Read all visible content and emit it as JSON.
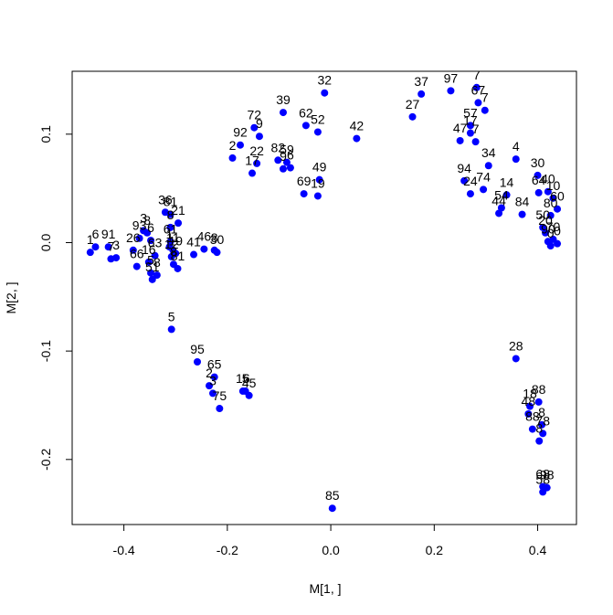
{
  "chart_data": {
    "type": "scatter",
    "title": "",
    "xlabel": "M[1, ]",
    "ylabel": "M[2, ]",
    "xlim": [
      -0.5,
      0.475
    ],
    "ylim": [
      -0.26,
      0.158
    ],
    "x_ticks": [
      -0.4,
      -0.2,
      0.0,
      0.2,
      0.4
    ],
    "x_tick_labels": [
      "-0.4",
      "-0.2",
      "0.0",
      "0.2",
      "0.4"
    ],
    "y_ticks": [
      -0.2,
      -0.1,
      0.0,
      0.1
    ],
    "y_tick_labels": [
      "-0.2",
      "-0.1",
      "0.0",
      "0.1"
    ],
    "grid": false,
    "legend": "none",
    "point_color": "#0000ff",
    "points": [
      {
        "label": "1",
        "x": -0.465,
        "y": -0.009
      },
      {
        "label": "6",
        "x": -0.455,
        "y": -0.004
      },
      {
        "label": "91",
        "x": -0.43,
        "y": -0.004
      },
      {
        "label": "7",
        "x": -0.425,
        "y": -0.015
      },
      {
        "label": "3",
        "x": -0.415,
        "y": -0.014
      },
      {
        "label": "26",
        "x": -0.382,
        "y": -0.007
      },
      {
        "label": "66",
        "x": -0.375,
        "y": -0.022
      },
      {
        "label": "93",
        "x": -0.37,
        "y": 0.004
      },
      {
        "label": "3",
        "x": -0.362,
        "y": 0.011
      },
      {
        "label": "8",
        "x": -0.355,
        "y": 0.009
      },
      {
        "label": "6",
        "x": -0.348,
        "y": 0.002
      },
      {
        "label": "16",
        "x": -0.352,
        "y": -0.018
      },
      {
        "label": "5",
        "x": -0.348,
        "y": -0.028
      },
      {
        "label": "51",
        "x": -0.345,
        "y": -0.034
      },
      {
        "label": "63",
        "x": -0.34,
        "y": -0.012
      },
      {
        "label": "8",
        "x": -0.336,
        "y": -0.03
      },
      {
        "label": "36",
        "x": -0.32,
        "y": 0.028
      },
      {
        "label": "81",
        "x": -0.31,
        "y": 0.026
      },
      {
        "label": "21",
        "x": -0.295,
        "y": 0.018
      },
      {
        "label": "8",
        "x": -0.31,
        "y": 0.014
      },
      {
        "label": "61",
        "x": -0.31,
        "y": 0.001
      },
      {
        "label": "11",
        "x": -0.305,
        "y": -0.007
      },
      {
        "label": "1",
        "x": -0.312,
        "y": -0.004
      },
      {
        "label": "12",
        "x": -0.308,
        "y": -0.013
      },
      {
        "label": "19",
        "x": -0.3,
        "y": -0.01
      },
      {
        "label": "8",
        "x": -0.304,
        "y": -0.02
      },
      {
        "label": "81",
        "x": -0.296,
        "y": -0.024
      },
      {
        "label": "41",
        "x": -0.265,
        "y": -0.011
      },
      {
        "label": "46",
        "x": -0.245,
        "y": -0.006
      },
      {
        "label": "8",
        "x": -0.225,
        "y": -0.007
      },
      {
        "label": "30",
        "x": -0.22,
        "y": -0.009
      },
      {
        "label": "5",
        "x": -0.308,
        "y": -0.08
      },
      {
        "label": "95",
        "x": -0.258,
        "y": -0.11
      },
      {
        "label": "65",
        "x": -0.225,
        "y": -0.124
      },
      {
        "label": "2",
        "x": -0.235,
        "y": -0.132
      },
      {
        "label": "3",
        "x": -0.228,
        "y": -0.139
      },
      {
        "label": "75",
        "x": -0.215,
        "y": -0.153
      },
      {
        "label": "16",
        "x": -0.17,
        "y": -0.137
      },
      {
        "label": "5",
        "x": -0.165,
        "y": -0.137
      },
      {
        "label": "45",
        "x": -0.158,
        "y": -0.141
      },
      {
        "label": "72",
        "x": -0.148,
        "y": 0.106
      },
      {
        "label": "9",
        "x": -0.138,
        "y": 0.098
      },
      {
        "label": "92",
        "x": -0.175,
        "y": 0.09
      },
      {
        "label": "2",
        "x": -0.19,
        "y": 0.078
      },
      {
        "label": "22",
        "x": -0.143,
        "y": 0.073
      },
      {
        "label": "17",
        "x": -0.152,
        "y": 0.064
      },
      {
        "label": "39",
        "x": -0.092,
        "y": 0.12
      },
      {
        "label": "82",
        "x": -0.102,
        "y": 0.076
      },
      {
        "label": "9",
        "x": -0.092,
        "y": 0.068
      },
      {
        "label": "59",
        "x": -0.085,
        "y": 0.074
      },
      {
        "label": "6",
        "x": -0.078,
        "y": 0.069
      },
      {
        "label": "62",
        "x": -0.048,
        "y": 0.108
      },
      {
        "label": "52",
        "x": -0.025,
        "y": 0.102
      },
      {
        "label": "69",
        "x": -0.052,
        "y": 0.045
      },
      {
        "label": "49",
        "x": -0.022,
        "y": 0.058
      },
      {
        "label": "19",
        "x": -0.025,
        "y": 0.043
      },
      {
        "label": "32",
        "x": -0.012,
        "y": 0.138
      },
      {
        "label": "42",
        "x": 0.05,
        "y": 0.096
      },
      {
        "label": "85",
        "x": 0.003,
        "y": -0.245
      },
      {
        "label": "27",
        "x": 0.158,
        "y": 0.116
      },
      {
        "label": "37",
        "x": 0.175,
        "y": 0.137
      },
      {
        "label": "97",
        "x": 0.232,
        "y": 0.14
      },
      {
        "label": "7",
        "x": 0.282,
        "y": 0.143
      },
      {
        "label": "67",
        "x": 0.285,
        "y": 0.129
      },
      {
        "label": "7",
        "x": 0.298,
        "y": 0.122
      },
      {
        "label": "57",
        "x": 0.27,
        "y": 0.108
      },
      {
        "label": "47",
        "x": 0.25,
        "y": 0.094
      },
      {
        "label": "7",
        "x": 0.28,
        "y": 0.093
      },
      {
        "label": "17",
        "x": 0.27,
        "y": 0.101
      },
      {
        "label": "34",
        "x": 0.305,
        "y": 0.071
      },
      {
        "label": "94",
        "x": 0.258,
        "y": 0.057
      },
      {
        "label": "24",
        "x": 0.27,
        "y": 0.045
      },
      {
        "label": "74",
        "x": 0.295,
        "y": 0.049
      },
      {
        "label": "14",
        "x": 0.34,
        "y": 0.044
      },
      {
        "label": "54",
        "x": 0.33,
        "y": 0.032
      },
      {
        "label": "44",
        "x": 0.325,
        "y": 0.027
      },
      {
        "label": "84",
        "x": 0.37,
        "y": 0.026
      },
      {
        "label": "4",
        "x": 0.358,
        "y": 0.077
      },
      {
        "label": "30",
        "x": 0.4,
        "y": 0.062
      },
      {
        "label": "64",
        "x": 0.402,
        "y": 0.046
      },
      {
        "label": "40",
        "x": 0.42,
        "y": 0.047
      },
      {
        "label": "10",
        "x": 0.43,
        "y": 0.041
      },
      {
        "label": "60",
        "x": 0.438,
        "y": 0.031
      },
      {
        "label": "80",
        "x": 0.425,
        "y": 0.025
      },
      {
        "label": "50",
        "x": 0.41,
        "y": 0.014
      },
      {
        "label": "20",
        "x": 0.415,
        "y": 0.009
      },
      {
        "label": "70",
        "x": 0.43,
        "y": 0.003
      },
      {
        "label": "90",
        "x": 0.42,
        "y": 0.001
      },
      {
        "label": "0",
        "x": 0.425,
        "y": -0.003
      },
      {
        "label": "0",
        "x": 0.438,
        "y": -0.001
      },
      {
        "label": "28",
        "x": 0.358,
        "y": -0.107
      },
      {
        "label": "88",
        "x": 0.402,
        "y": -0.147
      },
      {
        "label": "18",
        "x": 0.385,
        "y": -0.151
      },
      {
        "label": "48",
        "x": 0.382,
        "y": -0.158
      },
      {
        "label": "88",
        "x": 0.39,
        "y": -0.172
      },
      {
        "label": "8",
        "x": 0.408,
        "y": -0.168
      },
      {
        "label": "78",
        "x": 0.41,
        "y": -0.176
      },
      {
        "label": "8",
        "x": 0.403,
        "y": -0.183
      },
      {
        "label": "68",
        "x": 0.41,
        "y": -0.225
      },
      {
        "label": "98",
        "x": 0.418,
        "y": -0.226
      },
      {
        "label": "58",
        "x": 0.41,
        "y": -0.23
      }
    ]
  }
}
